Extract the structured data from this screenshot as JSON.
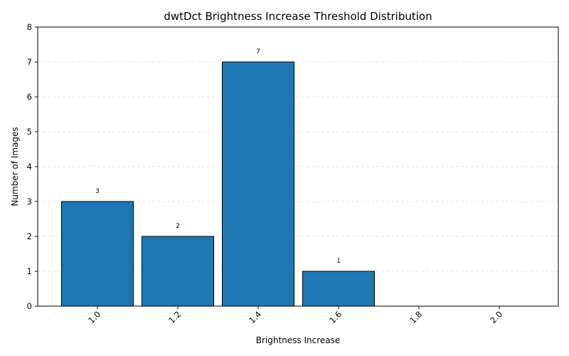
{
  "chart_data": {
    "type": "bar",
    "title": "dwtDct Brightness Increase Threshold Distribution",
    "xlabel": "Brightness Increase",
    "ylabel": "Number of Images",
    "categories": [
      "1.0",
      "1.2",
      "1.4",
      "1.6",
      "1.8",
      "2.0"
    ],
    "values": [
      3,
      2,
      7,
      1,
      0,
      0
    ],
    "data_labels": [
      "3",
      "2",
      "7",
      "1",
      "",
      ""
    ],
    "ylim": [
      0,
      8
    ],
    "yticks": [
      "0",
      "1",
      "2",
      "3",
      "4",
      "5",
      "6",
      "7",
      "8"
    ],
    "grid": "y-dashed",
    "bar_color": "#1f77b4",
    "edge_color": "#000000",
    "grid_color": "#d9d9d9"
  }
}
